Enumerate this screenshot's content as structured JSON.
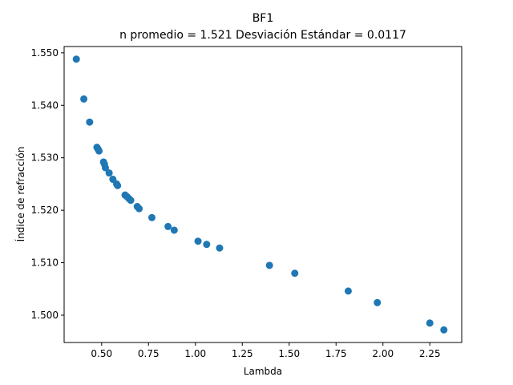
{
  "chart_data": {
    "type": "scatter",
    "title": "BF1",
    "subtitle": "n promedio = 1.521  Desviación Estándar = 0.0117",
    "xlabel": "Lambda",
    "ylabel": "Índice de refracción",
    "xlim": [
      0.3,
      2.42
    ],
    "ylim": [
      1.4948,
      1.5512
    ],
    "xticks": [
      0.5,
      0.75,
      1.0,
      1.25,
      1.5,
      1.75,
      2.0,
      2.25
    ],
    "xtick_labels": [
      "0.50",
      "0.75",
      "1.00",
      "1.25",
      "1.50",
      "1.75",
      "2.00",
      "2.25"
    ],
    "yticks": [
      1.5,
      1.51,
      1.52,
      1.53,
      1.54,
      1.55
    ],
    "ytick_labels": [
      "1.500",
      "1.510",
      "1.520",
      "1.530",
      "1.540",
      "1.550"
    ],
    "grid": false,
    "marker_color": "#1f77b4",
    "series": [
      {
        "x": [
          0.365,
          0.405,
          0.436,
          0.475,
          0.48,
          0.486,
          0.51,
          0.515,
          0.52,
          0.54,
          0.56,
          0.58,
          0.585,
          0.625,
          0.635,
          0.646,
          0.655,
          0.69,
          0.7,
          0.768,
          0.854,
          0.887,
          1.014,
          1.06,
          1.129,
          1.395,
          1.53,
          1.815,
          1.97,
          2.25,
          2.325
        ],
        "y": [
          1.5488,
          1.5412,
          1.5368,
          1.532,
          1.5317,
          1.5313,
          1.5292,
          1.5288,
          1.5281,
          1.5271,
          1.5259,
          1.525,
          1.5247,
          1.5229,
          1.5226,
          1.5222,
          1.5219,
          1.5207,
          1.5203,
          1.5186,
          1.5169,
          1.5162,
          1.5141,
          1.5135,
          1.5128,
          1.5095,
          1.508,
          1.5046,
          1.5024,
          1.4985,
          1.4972
        ]
      }
    ]
  }
}
